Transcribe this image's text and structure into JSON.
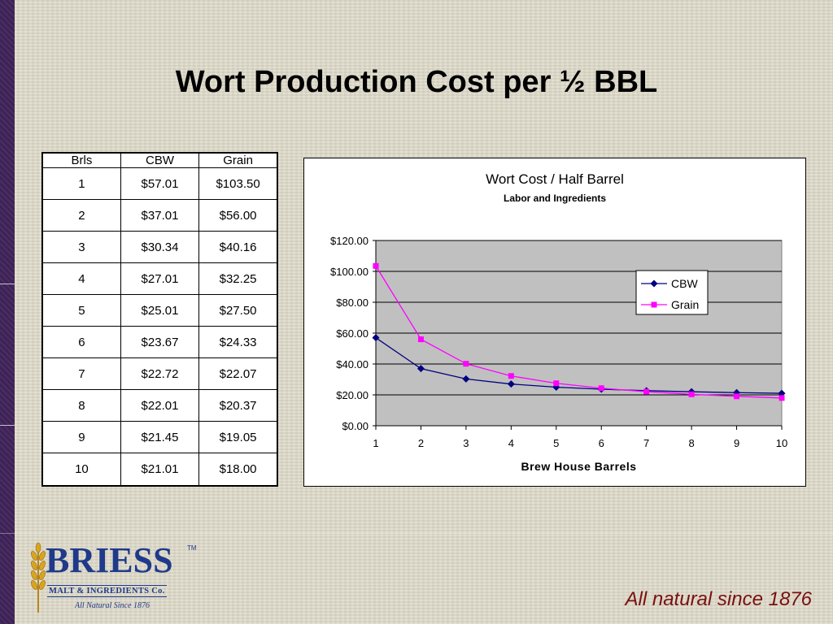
{
  "slide": {
    "title": "Wort Production Cost per ½ BBL",
    "tagline": "All natural since 1876"
  },
  "logo": {
    "name": "BRIESS",
    "trademark": "TM",
    "subtitle": "MALT & INGREDIENTS Co.",
    "tag": "All Natural Since 1876"
  },
  "table": {
    "headers": [
      "Brls",
      "CBW",
      "Grain"
    ],
    "rows": [
      [
        "1",
        "$57.01",
        "$103.50"
      ],
      [
        "2",
        "$37.01",
        "$56.00"
      ],
      [
        "3",
        "$30.34",
        "$40.16"
      ],
      [
        "4",
        "$27.01",
        "$32.25"
      ],
      [
        "5",
        "$25.01",
        "$27.50"
      ],
      [
        "6",
        "$23.67",
        "$24.33"
      ],
      [
        "7",
        "$22.72",
        "$22.07"
      ],
      [
        "8",
        "$22.01",
        "$20.37"
      ],
      [
        "9",
        "$21.45",
        "$19.05"
      ],
      [
        "10",
        "$21.01",
        "$18.00"
      ]
    ]
  },
  "chart_data": {
    "type": "line",
    "title": "Wort Cost / Half Barrel",
    "subtitle": "Labor and Ingredients",
    "xlabel": "Brew House Barrels",
    "ylabel": "",
    "x": [
      1,
      2,
      3,
      4,
      5,
      6,
      7,
      8,
      9,
      10
    ],
    "ylim": [
      0,
      120
    ],
    "yticks": [
      0,
      20,
      40,
      60,
      80,
      100,
      120
    ],
    "ytick_labels": [
      "$0.00",
      "$20.00",
      "$40.00",
      "$60.00",
      "$80.00",
      "$100.00",
      "$120.00"
    ],
    "grid": true,
    "plot_background": "#c0c0c0",
    "legend": "right",
    "series": [
      {
        "name": "CBW",
        "color": "#000080",
        "marker": "diamond",
        "values": [
          57.01,
          37.01,
          30.34,
          27.01,
          25.01,
          23.67,
          22.72,
          22.01,
          21.45,
          21.01
        ]
      },
      {
        "name": "Grain",
        "color": "#ff00ff",
        "marker": "square",
        "values": [
          103.5,
          56.0,
          40.16,
          32.25,
          27.5,
          24.33,
          22.07,
          20.37,
          19.05,
          18.0
        ]
      }
    ]
  }
}
